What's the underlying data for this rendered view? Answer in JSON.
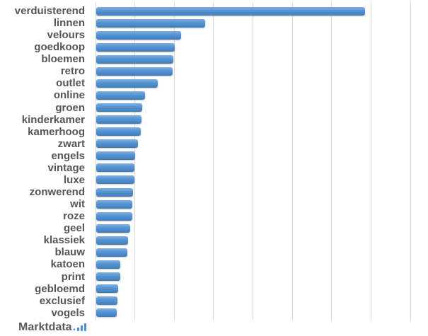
{
  "branding": {
    "name": "Marktdata",
    "dot": "."
  },
  "colors": {
    "bar_top": "#7FAFE0",
    "bar_mid": "#5592D1",
    "bar_bottom": "#4380BE",
    "bar_edge": "#3A72AC",
    "gridline": "#D9D9D9",
    "label_text": "#555555",
    "logo_text": "#58595B",
    "logo_accent": "#4A8FD3",
    "background": "#FFFFFF"
  },
  "chart_data": {
    "type": "bar",
    "orientation": "horizontal",
    "title": "",
    "xlabel": "",
    "ylabel": "",
    "categories": [
      "verduisterend",
      "linnen",
      "velours",
      "goedkoop",
      "bloemen",
      "retro",
      "outlet",
      "online",
      "groen",
      "kinderkamer",
      "kamerhoog",
      "zwart",
      "engels",
      "vintage",
      "luxe",
      "zonwerend",
      "wit",
      "roze",
      "geel",
      "klassiek",
      "blauw",
      "katoen",
      "print",
      "gebloemd",
      "exclusief",
      "vogels"
    ],
    "values": [
      683,
      277,
      216,
      200,
      196,
      195,
      157,
      124,
      116,
      115,
      113,
      106,
      99,
      97,
      97,
      94,
      92,
      92,
      86,
      80,
      79,
      62,
      61,
      55,
      54,
      52
    ],
    "xlim": [
      0,
      800
    ],
    "gridline_step": 100,
    "x_tick_labels_visible": false,
    "grid": true,
    "legend": false,
    "value_axis_note": "no numeric axis labels shown; values estimated from gridlines at 100-unit intervals"
  }
}
